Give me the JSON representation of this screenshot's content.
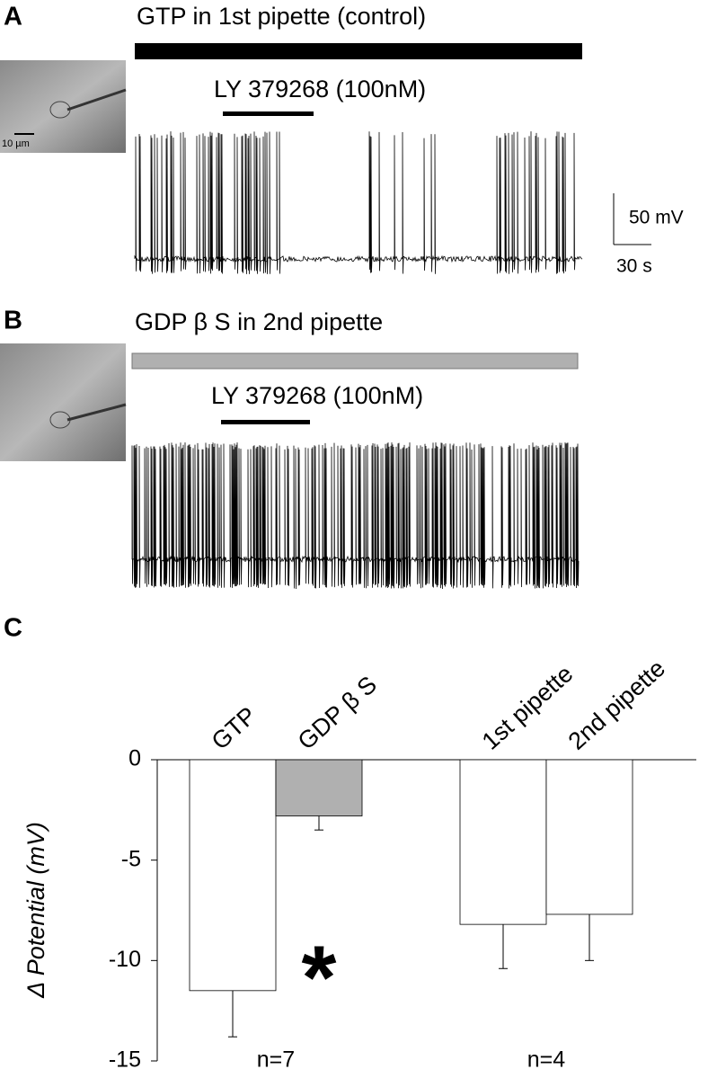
{
  "panels": [
    {
      "label": "A",
      "title": "GTP in 1st pipette (control)",
      "drug": "LY 379268 (100nM)",
      "photo_scale": "10 µm",
      "scale_bar": {
        "voltage": "50 mV",
        "time": "30 s"
      }
    },
    {
      "label": "B",
      "title": "GDP β S in 2nd pipette",
      "drug": "LY 379268 (100nM)"
    }
  ],
  "chart_data": {
    "type": "bar",
    "label": "C",
    "y_label": "Δ Potential (mV)",
    "categories": [
      "GTP",
      "GDP β S",
      "1st pipette",
      "2nd pipette"
    ],
    "values": [
      -11.5,
      -2.8,
      -8.2,
      -7.7
    ],
    "errors": [
      2.3,
      0.7,
      2.2,
      2.3
    ],
    "colors": [
      "#ffffff",
      "#b0b0b0",
      "#ffffff",
      "#ffffff"
    ],
    "annotations": [
      "*",
      "n=7",
      "n=4"
    ],
    "ylim": [
      -15,
      0
    ],
    "yticks": [
      0,
      -5,
      -10,
      -15
    ]
  }
}
